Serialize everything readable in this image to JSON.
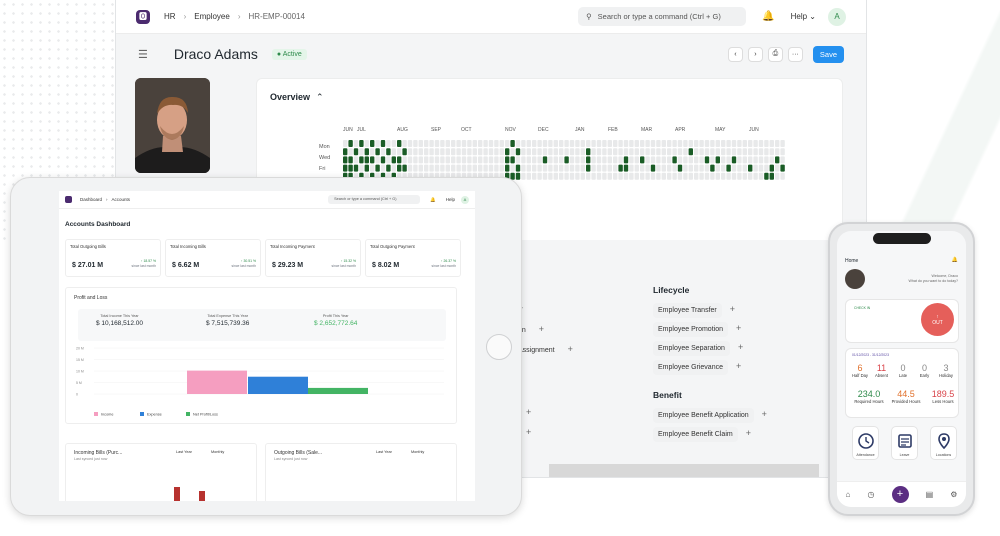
{
  "desktop": {
    "breadcrumb": [
      "HR",
      "Employee",
      "HR-EMP-00014"
    ],
    "search_placeholder": "Search or type a command (Ctrl + G)",
    "help": "Help",
    "avatar_letter": "A",
    "employee_name": "Draco Adams",
    "status": "Active",
    "save": "Save",
    "overview": "Overview",
    "months": [
      "JUN",
      "JUL",
      "AUG",
      "SEP",
      "OCT",
      "NOV",
      "DEC",
      "JAN",
      "FEB",
      "MAR",
      "APR",
      "MAY",
      "JUN"
    ],
    "days": [
      "Mon",
      "Wed",
      "Fri"
    ],
    "lifecycle_title": "Lifecycle",
    "lifecycle_items": [
      "Employee Transfer",
      "Employee Promotion",
      "Employee Separation",
      "Employee Grievance"
    ],
    "benefit_title": "Benefit",
    "benefit_items": [
      "Employee Benefit Application",
      "Employee Benefit Claim"
    ],
    "partial_items": [
      "on",
      "Assignment"
    ]
  },
  "tablet": {
    "breadcrumb": [
      "Dashboard",
      "Accounts"
    ],
    "search_placeholder": "Search or type a command (Ctrl + G)",
    "help": "Help",
    "avatar_letter": "A",
    "title": "Accounts Dashboard",
    "kpis": [
      {
        "title": "Total Outgoing Bills",
        "value": "$ 27.01 M",
        "pct": "18.57 %",
        "note": "since last month"
      },
      {
        "title": "Total Incoming Bills",
        "value": "$ 6.62 M",
        "pct": "30.51 %",
        "note": "since last month"
      },
      {
        "title": "Total Incoming Payment",
        "value": "$ 29.23 M",
        "pct": "15.32 %",
        "note": "since last month"
      },
      {
        "title": "Total Outgoing Payment",
        "value": "$ 8.02 M",
        "pct": "26.37 %",
        "note": "since last month"
      }
    ],
    "profit_title": "Profit and Loss",
    "profit_stats": [
      {
        "label": "Total Income This Year",
        "value": "$ 10,168,512.00"
      },
      {
        "label": "Total Expense This Year",
        "value": "$ 7,515,739.36"
      },
      {
        "label": "Profit This Year",
        "value": "$ 2,652,772.64"
      }
    ],
    "y_ticks": [
      "20 M",
      "15 M",
      "10 M",
      "5 M",
      "0"
    ],
    "legend": [
      "Income",
      "Expense",
      "Net Profit/Loss"
    ],
    "incoming_title": "Incoming Bills (Purc...",
    "incoming_sub": "Last synced just now",
    "outgoing_title": "Outgoing Bills (Sale...",
    "outgoing_sub": "Last synced just now",
    "filter1": "Last Year",
    "filter2": "Monthly"
  },
  "chart_data": {
    "type": "bar",
    "categories": [
      ""
    ],
    "series": [
      {
        "name": "Income",
        "values": [
          10.17
        ]
      },
      {
        "name": "Expense",
        "values": [
          7.52
        ]
      },
      {
        "name": "Net Profit/Loss",
        "values": [
          2.65
        ]
      }
    ],
    "ylim": [
      0,
      20
    ],
    "colors": [
      "#f59ec0",
      "#2f80d8",
      "#43b464"
    ]
  },
  "phone": {
    "title": "Home",
    "welcome": "Welcome, Draco",
    "question": "What do you want to do today?",
    "checkin_label": "CHECK IN",
    "out_button": "OUT",
    "period": "01/12/2023 - 31/12/2023",
    "stats": [
      {
        "value": "6",
        "label": "Half Day",
        "color": "#e0712c"
      },
      {
        "value": "11",
        "label": "Absent",
        "color": "#d9444a"
      },
      {
        "value": "0",
        "label": "Late",
        "color": "#888888"
      },
      {
        "value": "0",
        "label": "Early",
        "color": "#888888"
      },
      {
        "value": "3",
        "label": "Holiday",
        "color": "#888888"
      }
    ],
    "hours": [
      {
        "value": "234.0",
        "label": "Required Hours",
        "color": "#2d8a4a"
      },
      {
        "value": "44.5",
        "label": "Provided Hours",
        "color": "#e0712c"
      },
      {
        "value": "189.5",
        "label": "Less Hours",
        "color": "#d9444a"
      }
    ],
    "actions": [
      "Attendance",
      "Leave",
      "Locations"
    ]
  }
}
